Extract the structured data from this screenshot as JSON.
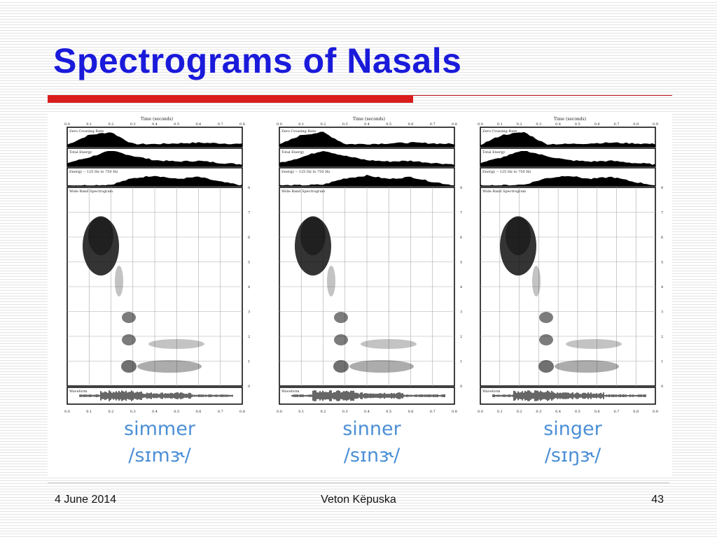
{
  "slide": {
    "title": "Spectrograms of Nasals",
    "footer": {
      "date": "4 June 2014",
      "author": "Veton Këpuska",
      "page": "43"
    }
  },
  "colors": {
    "title": "#1a1adb",
    "accent_red": "#d91c1c",
    "word_label": "#4b8fd6"
  },
  "figure": {
    "top_axis_label": "Time (seconds)",
    "track_labels": {
      "zero_crossing": "Zero Crossing Rate",
      "total_energy": "Total Energy",
      "band_energy": "Energy -- 125 Hz to 750 Hz",
      "spectrogram": "Wide Band Spectrogram",
      "waveform": "Waveform"
    },
    "panels": [
      {
        "word": "simmer",
        "ipa": "/sɪmɝ/",
        "time_ticks": [
          "0.0",
          "0.1",
          "0.2",
          "0.3",
          "0.4",
          "0.5",
          "0.6",
          "0.7",
          "0.8"
        ]
      },
      {
        "word": "sinner",
        "ipa": "/sɪnɝ/",
        "time_ticks": [
          "0.0",
          "0.1",
          "0.2",
          "0.3",
          "0.4",
          "0.5",
          "0.6",
          "0.7",
          "0.8"
        ]
      },
      {
        "word": "singer",
        "ipa": "/sɪŋɝ/",
        "time_ticks": [
          "0.0",
          "0.1",
          "0.2",
          "0.3",
          "0.4",
          "0.5",
          "0.6",
          "0.7",
          "0.8",
          "0.9"
        ]
      }
    ]
  }
}
